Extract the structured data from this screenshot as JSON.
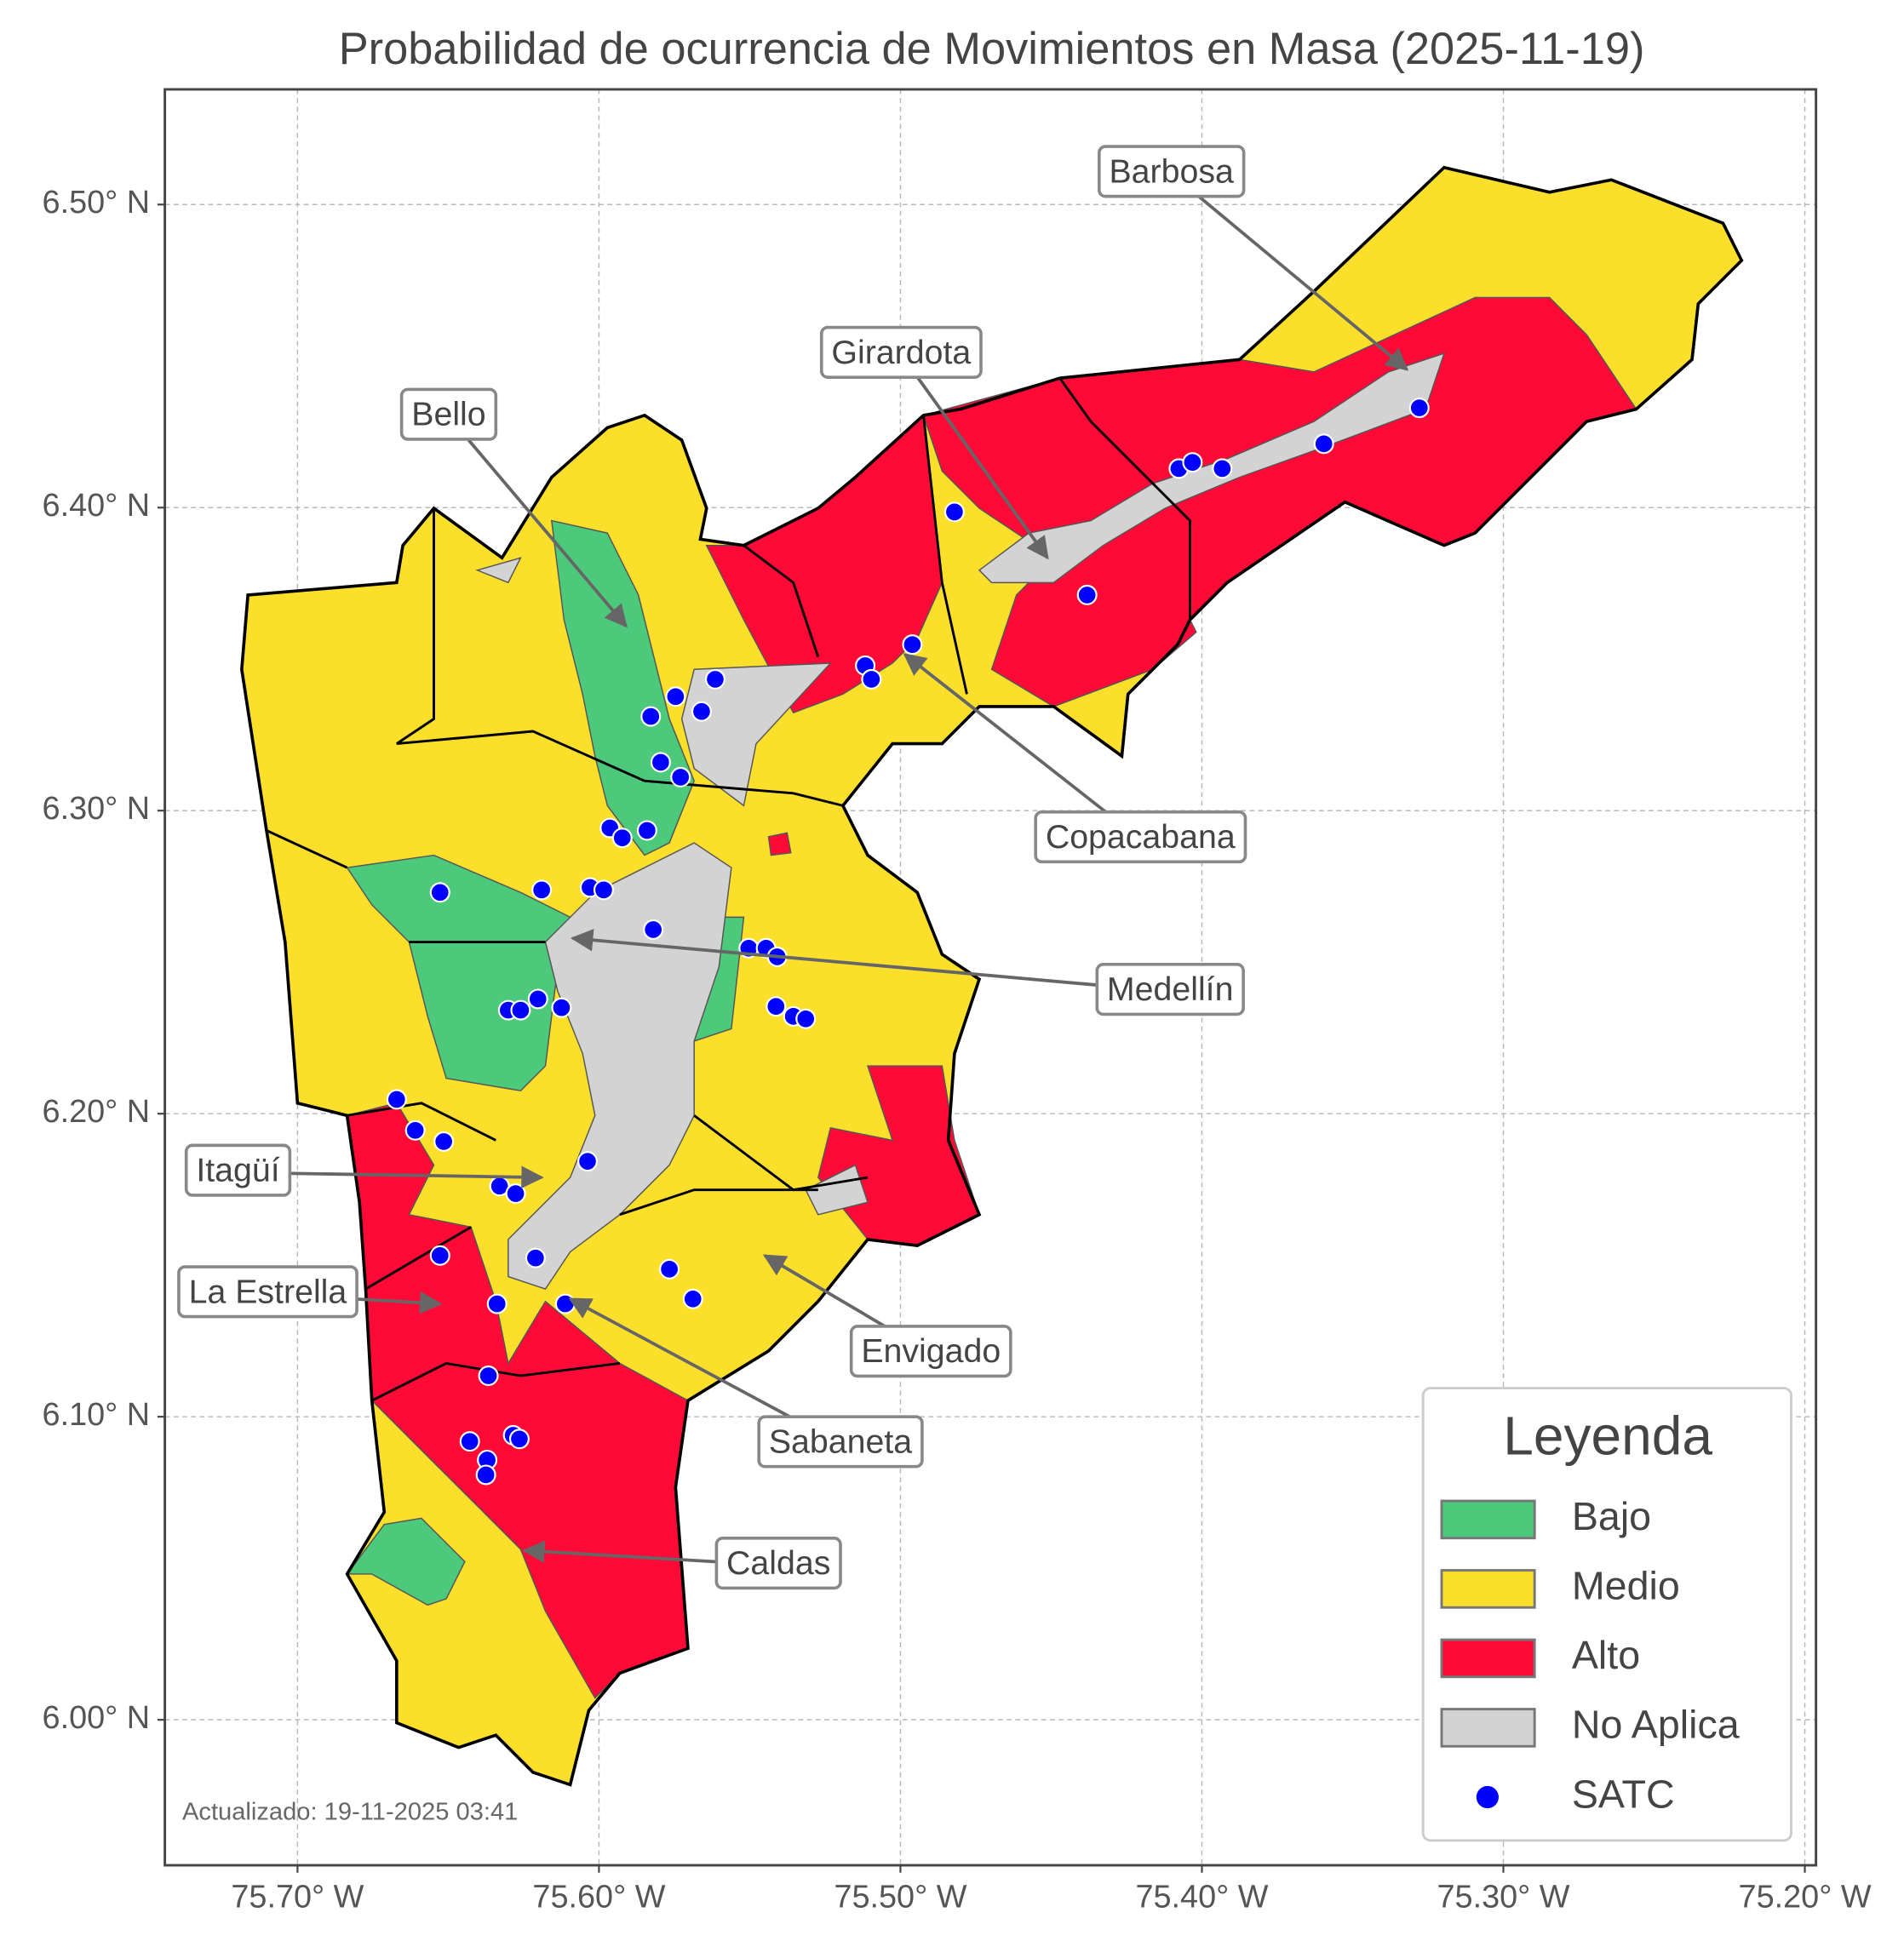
{
  "title": "Probabilidad de ocurrencia de Movimientos en Masa (2025-11-19)",
  "map": {
    "xlim": [
      -75.744,
      -75.1963
    ],
    "ylim": [
      5.952,
      6.538
    ],
    "xticks": [
      {
        "value": -75.7,
        "label": "75.70° W"
      },
      {
        "value": -75.6,
        "label": "75.60° W"
      },
      {
        "value": -75.5,
        "label": "75.50° W"
      },
      {
        "value": -75.4,
        "label": "75.40° W"
      },
      {
        "value": -75.3,
        "label": "75.30° W"
      },
      {
        "value": -75.2,
        "label": "75.20° W"
      }
    ],
    "yticks": [
      {
        "value": 6.0,
        "label": "6.00° N"
      },
      {
        "value": 6.1,
        "label": "6.10° N"
      },
      {
        "value": 6.2,
        "label": "6.20° N"
      },
      {
        "value": 6.3,
        "label": "6.30° N"
      },
      {
        "value": 6.4,
        "label": "6.40° N"
      },
      {
        "value": 6.5,
        "label": "6.50° N"
      }
    ],
    "grid": true
  },
  "annotations": [
    {
      "label": "Barbosa"
    },
    {
      "label": "Girardota"
    },
    {
      "label": "Bello"
    },
    {
      "label": "Copacabana"
    },
    {
      "label": "Medellín"
    },
    {
      "label": "Itagüí"
    },
    {
      "label": "La Estrella"
    },
    {
      "label": "Envigado"
    },
    {
      "label": "Sabaneta"
    },
    {
      "label": "Caldas"
    }
  ],
  "legend": {
    "title": "Leyenda",
    "items": [
      {
        "label": "Bajo",
        "color": "#4cc97a"
      },
      {
        "label": "Medio",
        "color": "#fbdf2b"
      },
      {
        "label": "Alto",
        "color": "#ff0a37"
      },
      {
        "label": "No Aplica",
        "color": "#d3d3d3"
      },
      {
        "label": "SATC",
        "color": "#0000ff"
      }
    ]
  },
  "footnote": "Actualizado: 19-11-2025 03:41"
}
